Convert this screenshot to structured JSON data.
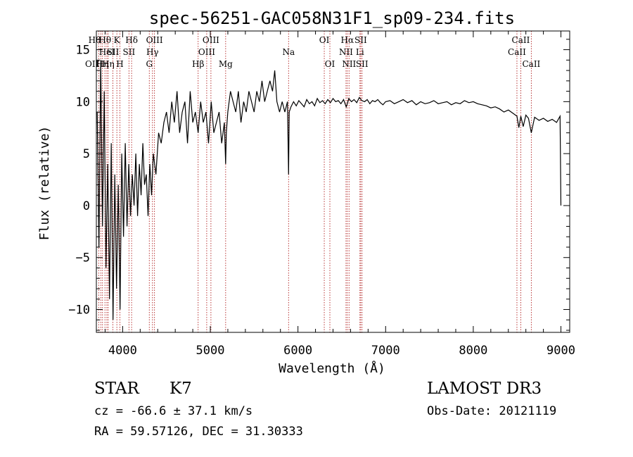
{
  "chart_data": {
    "type": "line",
    "title": "spec-56251-GAC058N31F1_sp09-234.fits",
    "xlabel": "Wavelength (Å)",
    "ylabel": "Flux (relative)",
    "xlim": [
      3700,
      9100
    ],
    "ylim": [
      -12.2,
      16.8
    ],
    "xticks": [
      4000,
      5000,
      6000,
      7000,
      8000,
      9000
    ],
    "yticks": [
      -10,
      -5,
      0,
      5,
      10,
      15
    ],
    "grid": false,
    "line_color": "#000000",
    "marker_color": "#b22222",
    "series": [
      {
        "name": "spectrum",
        "x": [
          3710,
          3730,
          3750,
          3770,
          3790,
          3810,
          3830,
          3850,
          3870,
          3890,
          3910,
          3930,
          3950,
          3970,
          3990,
          4010,
          4030,
          4050,
          4070,
          4090,
          4110,
          4130,
          4150,
          4170,
          4190,
          4210,
          4230,
          4250,
          4270,
          4290,
          4310,
          4330,
          4350,
          4380,
          4410,
          4440,
          4470,
          4500,
          4530,
          4560,
          4590,
          4620,
          4650,
          4680,
          4710,
          4740,
          4770,
          4800,
          4830,
          4861,
          4890,
          4920,
          4950,
          4980,
          5010,
          5040,
          5070,
          5100,
          5130,
          5160,
          5175,
          5183,
          5200,
          5230,
          5260,
          5290,
          5320,
          5350,
          5380,
          5410,
          5440,
          5470,
          5500,
          5530,
          5560,
          5590,
          5620,
          5650,
          5680,
          5710,
          5735,
          5760,
          5790,
          5820,
          5850,
          5880,
          5893,
          5900,
          5920,
          5950,
          5980,
          6010,
          6040,
          6070,
          6100,
          6130,
          6160,
          6190,
          6220,
          6250,
          6280,
          6310,
          6340,
          6370,
          6400,
          6430,
          6460,
          6490,
          6520,
          6550,
          6563,
          6580,
          6610,
          6640,
          6670,
          6700,
          6730,
          6760,
          6790,
          6820,
          6850,
          6880,
          6910,
          6940,
          6970,
          7000,
          7050,
          7100,
          7150,
          7200,
          7250,
          7300,
          7350,
          7400,
          7450,
          7500,
          7550,
          7600,
          7650,
          7700,
          7750,
          7800,
          7850,
          7900,
          7950,
          8000,
          8050,
          8100,
          8150,
          8200,
          8250,
          8300,
          8350,
          8400,
          8450,
          8498,
          8520,
          8542,
          8570,
          8600,
          8630,
          8662,
          8700,
          8750,
          8800,
          8850,
          8900,
          8950,
          8990,
          9000
        ],
        "y": [
          9,
          -4,
          14,
          -2,
          11,
          -6,
          4,
          -9,
          6,
          -11,
          3,
          -8,
          2,
          -10,
          5,
          -3,
          6,
          -2,
          4,
          -1,
          3,
          0,
          5,
          -1,
          4,
          1,
          6,
          2,
          3,
          -1,
          4,
          1,
          5,
          3,
          7,
          6,
          8,
          9,
          7,
          10,
          8,
          11,
          7,
          9,
          10,
          6,
          11,
          8,
          9,
          7,
          10,
          8,
          9,
          6,
          10,
          7,
          8,
          9,
          6,
          8,
          4,
          7,
          9,
          11,
          10,
          9,
          11,
          8,
          10,
          9,
          11,
          10,
          9,
          11,
          10,
          12,
          10,
          11,
          12,
          11,
          13,
          10,
          9,
          10,
          9,
          10,
          3,
          9,
          9.5,
          10,
          9.6,
          10.1,
          9.8,
          9.5,
          10.2,
          9.8,
          10,
          9.6,
          10.3,
          9.9,
          10.1,
          9.8,
          10.2,
          9.9,
          10.3,
          10,
          10.1,
          9.8,
          10.2,
          9.5,
          9.8,
          10.3,
          10,
          10.2,
          9.9,
          10.4,
          10.1,
          10,
          10.2,
          9.8,
          10.1,
          10,
          10.2,
          9.9,
          9.7,
          10,
          10.1,
          9.8,
          10,
          10.2,
          9.9,
          10.1,
          9.7,
          10,
          9.8,
          9.9,
          10.1,
          9.8,
          9.9,
          10,
          9.7,
          9.9,
          9.8,
          10.1,
          9.9,
          10,
          9.8,
          9.7,
          9.6,
          9.4,
          9.5,
          9.3,
          9,
          9.2,
          8.9,
          8.6,
          7.5,
          8.6,
          7.6,
          8.7,
          8.4,
          7,
          8.5,
          8.2,
          8.4,
          8.1,
          8.3,
          8,
          8.6,
          0
        ]
      }
    ],
    "line_markers": [
      {
        "x": 3727,
        "label": "OII",
        "row": 3,
        "anchor": "end"
      },
      {
        "x": 3751,
        "label": "Hθ",
        "row": 1,
        "anchor": "end"
      },
      {
        "x": 3770,
        "label": "Hη",
        "row": 3,
        "anchor": "middle"
      },
      {
        "x": 3798,
        "label": "Hθ",
        "row": 1,
        "anchor": "middle"
      },
      {
        "x": 3820,
        "label": "HeI",
        "row": 2,
        "anchor": "middle"
      },
      {
        "x": 3835,
        "label": "Hη",
        "row": 3,
        "anchor": "middle"
      },
      {
        "x": 3889,
        "label": "SII",
        "row": 2,
        "anchor": "middle"
      },
      {
        "x": 3934,
        "label": "K",
        "row": 1,
        "anchor": "middle"
      },
      {
        "x": 3969,
        "label": "H",
        "row": 3,
        "anchor": "middle"
      },
      {
        "x": 4102,
        "label": "Hδ",
        "row": 1,
        "anchor": "middle"
      },
      {
        "x": 4072,
        "label": "SII",
        "row": 2,
        "anchor": "middle"
      },
      {
        "x": 4304,
        "label": "G",
        "row": 3,
        "anchor": "middle"
      },
      {
        "x": 4340,
        "label": "Hγ",
        "row": 2,
        "anchor": "middle"
      },
      {
        "x": 4363,
        "label": "OIII",
        "row": 1,
        "anchor": "middle"
      },
      {
        "x": 4861,
        "label": "Hβ",
        "row": 3,
        "anchor": "middle"
      },
      {
        "x": 4959,
        "label": "OIII",
        "row": 2,
        "anchor": "middle"
      },
      {
        "x": 5007,
        "label": "OIII",
        "row": 1,
        "anchor": "middle"
      },
      {
        "x": 5175,
        "label": "Mg",
        "row": 3,
        "anchor": "middle"
      },
      {
        "x": 5893,
        "label": "Na",
        "row": 2,
        "anchor": "middle"
      },
      {
        "x": 6300,
        "label": "OI",
        "row": 1,
        "anchor": "middle"
      },
      {
        "x": 6364,
        "label": "OI",
        "row": 3,
        "anchor": "middle"
      },
      {
        "x": 6548,
        "label": "NII",
        "row": 2,
        "anchor": "middle"
      },
      {
        "x": 6563,
        "label": "Hα",
        "row": 1,
        "anchor": "middle"
      },
      {
        "x": 6583,
        "label": "NII",
        "row": 3,
        "anchor": "middle"
      },
      {
        "x": 6707,
        "label": "Li",
        "row": 2,
        "anchor": "middle"
      },
      {
        "x": 6716,
        "label": "SII",
        "row": 1,
        "anchor": "middle"
      },
      {
        "x": 6731,
        "label": "SII",
        "row": 3,
        "anchor": "middle"
      },
      {
        "x": 8498,
        "label": "CaII",
        "row": 2,
        "anchor": "middle"
      },
      {
        "x": 8542,
        "label": "CaII",
        "row": 1,
        "anchor": "middle"
      },
      {
        "x": 8662,
        "label": "CaII",
        "row": 3,
        "anchor": "middle"
      }
    ]
  },
  "info": {
    "object_class": "STAR",
    "subclass": "K7",
    "survey": "LAMOST DR3",
    "redshift": "cz = -66.6 ± 37.1 km/s",
    "obs_date": "Obs-Date: 20121119",
    "coords": "RA =  59.57126, DEC =  31.30333"
  }
}
